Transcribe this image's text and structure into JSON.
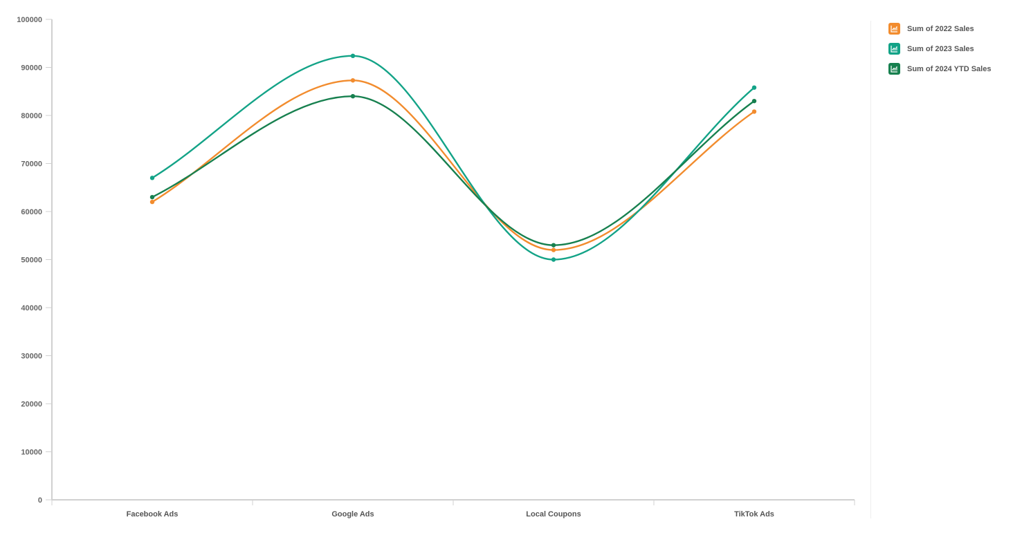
{
  "chart_data": {
    "type": "line",
    "title": "",
    "xlabel": "",
    "ylabel": "",
    "categories": [
      "Facebook Ads",
      "Google Ads",
      "Local Coupons",
      "TikTok Ads"
    ],
    "series": [
      {
        "name": "Sum of 2022 Sales",
        "color": "#F28C2E",
        "values": [
          62000,
          87300,
          52000,
          80800
        ]
      },
      {
        "name": "Sum of 2023 Sales",
        "color": "#13A387",
        "values": [
          67000,
          92400,
          50000,
          85800
        ]
      },
      {
        "name": "Sum of 2024 YTD Sales",
        "color": "#17804F",
        "values": [
          63000,
          84000,
          53000,
          83000
        ]
      }
    ],
    "ylim": [
      0,
      100000
    ],
    "yticks": [
      0,
      10000,
      20000,
      30000,
      40000,
      50000,
      60000,
      70000,
      80000,
      90000,
      100000
    ],
    "grid": false,
    "smooth": true,
    "legend_position": "right"
  },
  "legend": {
    "items": [
      {
        "label": "Sum of 2022 Sales",
        "color": "#F28C2E"
      },
      {
        "label": "Sum of 2023 Sales",
        "color": "#13A387"
      },
      {
        "label": "Sum of 2024 YTD Sales",
        "color": "#17804F"
      }
    ]
  }
}
